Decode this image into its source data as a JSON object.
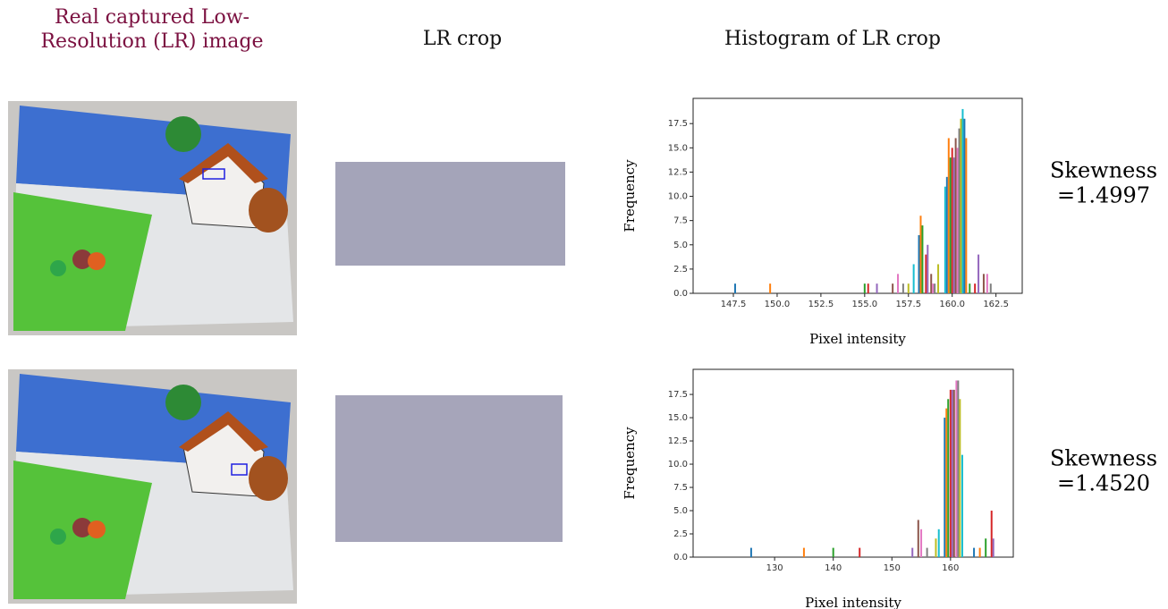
{
  "headers": {
    "image": [
      "Real captured Low-",
      "Resolution (LR) image"
    ],
    "crop": "LR crop",
    "histogram": "Histogram of LR crop"
  },
  "rows": [
    {
      "skewness_label": "Skewness",
      "skewness_value": "=1.4997"
    },
    {
      "skewness_label": "Skewness",
      "skewness_value": "=1.4520"
    }
  ],
  "chart_data": [
    {
      "type": "bar",
      "x_label": "Pixel intensity",
      "y_label": "Frequency",
      "colors": [
        "#1f77b4",
        "#ff7f0e",
        "#2ca02c",
        "#d62728",
        "#9467bd",
        "#8c564b",
        "#e377c2",
        "#7f7f7f",
        "#bcbd22",
        "#17becf"
      ],
      "x": [
        147.6,
        149.6,
        155.0,
        155.2,
        155.7,
        156.6,
        156.9,
        157.2,
        157.5,
        157.8,
        158.1,
        158.2,
        158.3,
        158.5,
        158.6,
        158.8,
        158.9,
        159.0,
        159.2,
        159.6,
        159.7,
        159.8,
        159.9,
        160.0,
        160.1,
        160.2,
        160.3,
        160.4,
        160.5,
        160.6,
        160.7,
        160.8,
        161.0,
        161.3,
        161.5,
        161.8,
        162.0,
        162.2
      ],
      "values": [
        1,
        1,
        1,
        1,
        1,
        1,
        2,
        1,
        1,
        3,
        6,
        8,
        7,
        4,
        5,
        2,
        1,
        1,
        3,
        11,
        12,
        16,
        14,
        15,
        14,
        16,
        15,
        17,
        18,
        19,
        18,
        16,
        1,
        1,
        4,
        2,
        2,
        1
      ],
      "xlim": [
        145.2,
        164.0
      ],
      "ylim": [
        0,
        20.1
      ],
      "xticks": [
        147.5,
        {
          "value": 150,
          "label": "150.0"
        },
        152.5,
        {
          "value": 155,
          "label": "155.0"
        },
        157.5,
        {
          "value": 160,
          "label": "160.0"
        },
        162.5
      ],
      "yticks": [
        {
          "value": 0,
          "label": "0.0"
        },
        2.5,
        {
          "value": 5,
          "label": "5.0"
        },
        7.5,
        {
          "value": 10,
          "label": "10.0"
        },
        12.5,
        {
          "value": 15,
          "label": "15.0"
        },
        17.5
      ]
    },
    {
      "type": "bar",
      "x_label": "Pixel intensity",
      "y_label": "Frequency",
      "colors": [
        "#1f77b4",
        "#ff7f0e",
        "#2ca02c",
        "#d62728",
        "#9467bd",
        "#8c564b",
        "#e377c2",
        "#7f7f7f",
        "#bcbd22",
        "#17becf"
      ],
      "x": [
        126,
        135,
        140,
        144.5,
        153.5,
        154.5,
        155,
        156,
        157.5,
        158,
        159,
        159.3,
        159.6,
        160,
        160.3,
        160.6,
        161,
        161.3,
        161.6,
        162,
        164,
        165,
        166,
        167,
        167.3
      ],
      "values": [
        1,
        1,
        1,
        1,
        1,
        4,
        3,
        1,
        2,
        3,
        15,
        16,
        17,
        18,
        18,
        18,
        19,
        19,
        17,
        11,
        1,
        1,
        2,
        5,
        2
      ],
      "xlim": [
        116.1,
        170.7
      ],
      "ylim": [
        0,
        20.2
      ],
      "xticks": [
        130,
        140,
        150,
        160
      ],
      "yticks": [
        {
          "value": 0,
          "label": "0.0"
        },
        2.5,
        {
          "value": 5,
          "label": "5.0"
        },
        7.5,
        {
          "value": 10,
          "label": "10.0"
        },
        12.5,
        {
          "value": 15,
          "label": "15.0"
        },
        17.5
      ]
    }
  ]
}
